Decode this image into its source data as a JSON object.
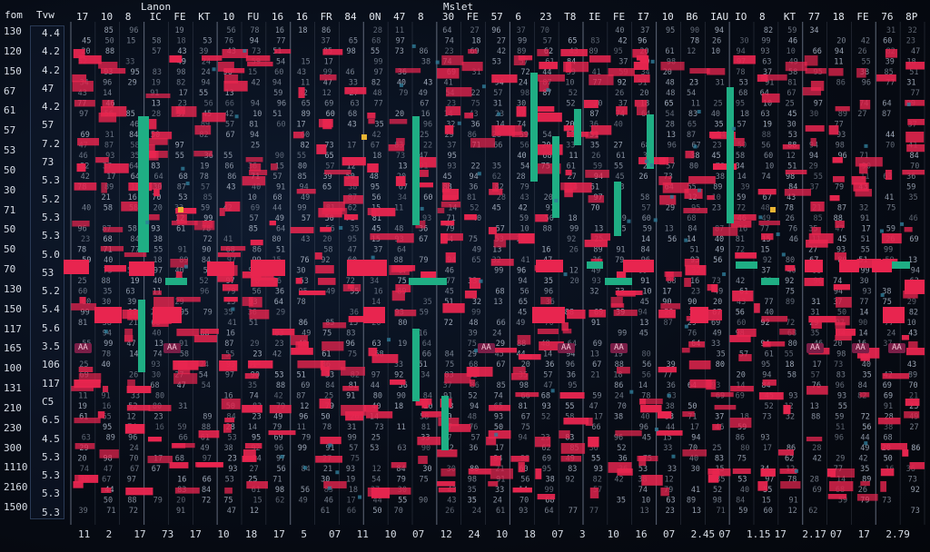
{
  "header": {
    "title_left": "Lanon",
    "title_right": "Mslet",
    "corner_left": "fom",
    "corner_second": "Tvw",
    "column_labels": [
      "17",
      "10",
      "8",
      "IC",
      "FE",
      "KT",
      "10",
      "FU",
      "16",
      "16",
      "FR",
      "84",
      "0N",
      "47",
      "8",
      "30",
      "FE",
      "57",
      "6",
      "23",
      "T8",
      "IE",
      "FE",
      "I7",
      "10",
      "B6",
      "IAU",
      "IO",
      "8",
      "KT",
      "77",
      "18",
      "FE",
      "76",
      "8P"
    ]
  },
  "row_labels": [
    "130",
    "120",
    "150",
    "67",
    "61",
    "57",
    "53",
    "50",
    "30",
    "71",
    "50",
    "50",
    "70",
    "130",
    "150",
    "117",
    "165",
    "100",
    "131",
    "210",
    "230",
    "300",
    "1110",
    "2160",
    "1500"
  ],
  "panel_labels": [
    "4.4",
    "4.2",
    "4.2",
    "47",
    "4.2",
    "57",
    "7.2",
    "73",
    "5.3",
    "5.2",
    "5.3",
    "5.3",
    "5.0",
    "53",
    "5.2",
    "5.4",
    "5.6",
    "3.5",
    "106",
    "117",
    "C5",
    "6.5",
    "4.5",
    "5.3",
    "5.3",
    "5.3",
    "5.3"
  ],
  "bottom_labels": [
    "11",
    "2",
    "17",
    "73",
    "17",
    "10",
    "18",
    "17",
    "5",
    "07",
    "11",
    "10",
    "07",
    "12",
    "24",
    "10",
    "18",
    "07",
    "3",
    "10",
    "16",
    "07",
    "2.45",
    "07",
    "1.15",
    "17",
    "2.17",
    "07",
    "17",
    "2.79"
  ],
  "tags": [
    "AA",
    "AA",
    "AA",
    "AA",
    "AA",
    "AA",
    "AA",
    "AA"
  ],
  "colors": {
    "red": "#e8254f",
    "teal": "#1fae84",
    "gold": "#e9b533",
    "grid": "#6b7486",
    "bg": "#05080f"
  },
  "chart_data": {
    "type": "heatmap",
    "title": "",
    "xlabel": "",
    "ylabel": "",
    "columns": 35,
    "rows": 25,
    "grid": true
  }
}
